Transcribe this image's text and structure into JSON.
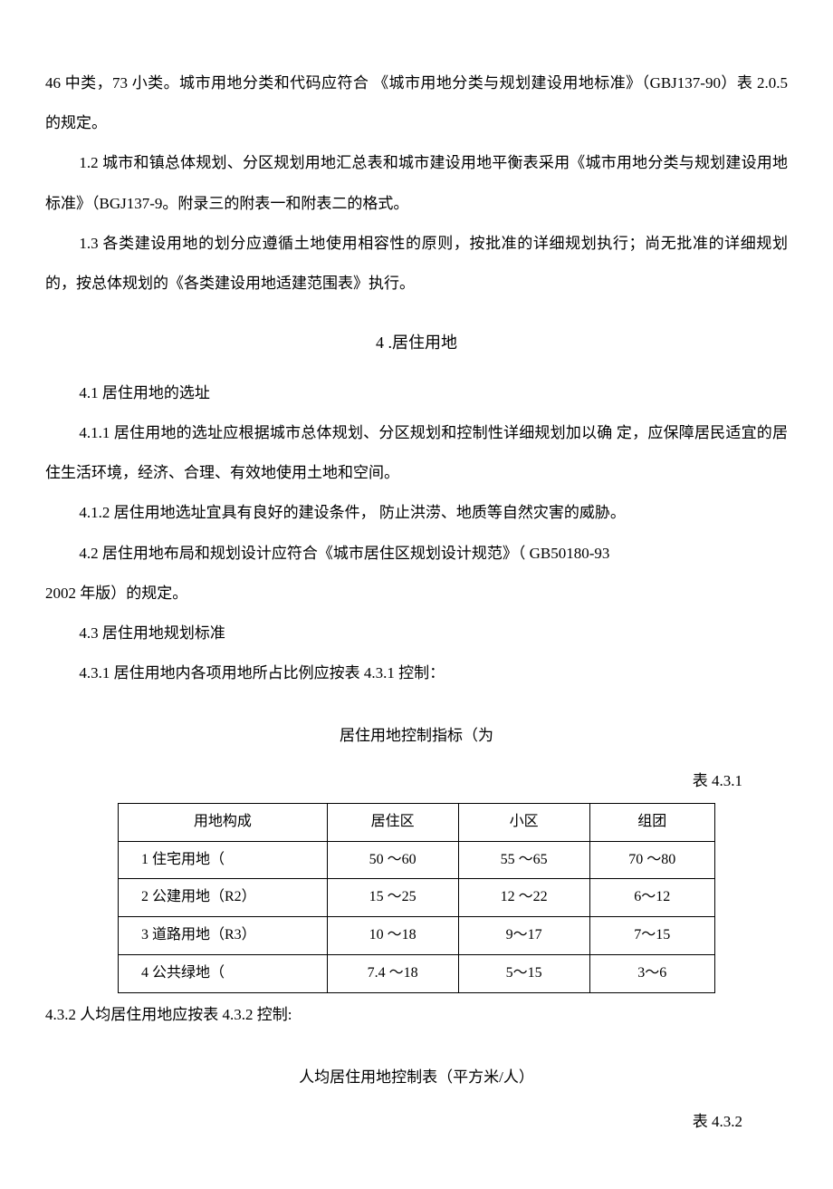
{
  "paragraphs": {
    "p1": "46 中类，73 小类。城市用地分类和代码应符合 《城市用地分类与规划建设用地标准》（GBJ137-90）表 2.0.5 的规定。",
    "p2": "1.2 城市和镇总体规划、分区规划用地汇总表和城市建设用地平衡表采用《城市用地分类与规划建设用地标准》（BGJ137-9。附录三的附表一和附表二的格式。",
    "p3": "1.3 各类建设用地的划分应遵循土地使用相容性的原则，按批准的详细规划执行；尚无批准的详细规划的，按总体规划的《各类建设用地适建范围表》执行。",
    "sectionTitle": "4 .居住用地",
    "s41": "4.1 居住用地的选址",
    "s411": "4.1.1   居住用地的选址应根据城市总体规划、分区规划和控制性详细规划加以确 定，应保障居民适宜的居住生活环境，经济、合理、有效地使用土地和空间。",
    "s412": "4.1.2      居住用地选址宜具有良好的建设条件， 防止洪涝、地质等自然灾害的威胁。",
    "s42a": "4.2 居住用地布局和规划设计应符合《城市居住区规划设计规范》（ GB50180-93",
    "s42b": "2002 年版）的规定。",
    "s43": "4.3 居住用地规划标准",
    "s431": "4.3.1   居住用地内各项用地所占比例应按表 4.3.1 控制：",
    "table1Title": "居住用地控制指标（为",
    "table1Label": "表 4.3.1",
    "s432": "4.3.2 人均居住用地应按表 4.3.2 控制:",
    "table2Title": "人均居住用地控制表（平方米/人）",
    "table2Label": "表 4.3.2"
  },
  "table1": {
    "headers": [
      "用地构成",
      "居住区",
      "小区",
      "组团"
    ],
    "rows": [
      [
        "1 住宅用地（",
        "50 〜60",
        "55 〜65",
        "70 〜80"
      ],
      [
        "2 公建用地（R2）",
        "15 〜25",
        "12 〜22",
        "6〜12"
      ],
      [
        "3 道路用地（R3）",
        "10 〜18",
        "9〜17",
        "7〜15"
      ],
      [
        "4 公共绿地（",
        "7.4 〜18",
        "5〜15",
        "3〜6"
      ]
    ],
    "colWidths": [
      "35%",
      "22%",
      "22%",
      "21%"
    ]
  }
}
